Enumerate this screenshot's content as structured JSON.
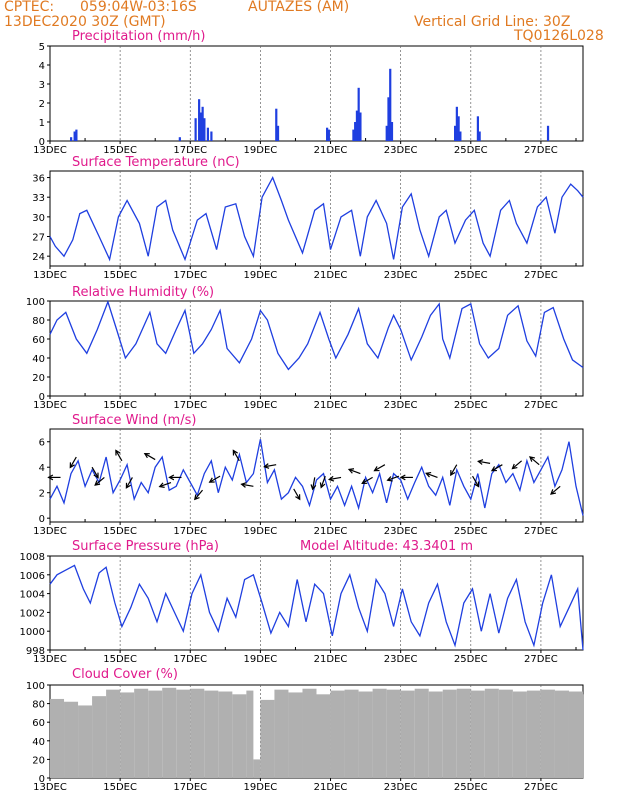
{
  "header": {
    "source": "CPTEC:",
    "coords": "059:04W-03:16S",
    "location": "AUTAZES (AM)",
    "start": "13DEC2020 30Z (GMT)",
    "grid_line": "Vertical Grid Line: 30Z",
    "code": "TQ0126L028"
  },
  "colors": {
    "series": "#1f3fe0",
    "cloud": "#b0b0b0",
    "title": "#e01a8c",
    "header": "#e07a22"
  },
  "chart_data": [
    {
      "type": "bar",
      "title": "Precipitation (mm/h)",
      "ylim": [
        0,
        5
      ],
      "yticks": [
        0,
        1,
        2,
        3,
        4,
        5
      ],
      "x_ticks": [
        "13DEC",
        "15DEC",
        "17DEC",
        "19DEC",
        "21DEC",
        "23DEC",
        "25DEC",
        "27DEC"
      ],
      "days": [
        0,
        15.2
      ],
      "bars": [
        [
          0.6,
          0.2
        ],
        [
          0.7,
          0.5
        ],
        [
          0.75,
          0.6
        ],
        [
          3.7,
          0.2
        ],
        [
          4.15,
          1.2
        ],
        [
          4.25,
          2.2
        ],
        [
          4.3,
          1.5
        ],
        [
          4.35,
          1.8
        ],
        [
          4.4,
          1.2
        ],
        [
          4.5,
          0.7
        ],
        [
          4.6,
          0.5
        ],
        [
          6.45,
          1.7
        ],
        [
          6.5,
          0.8
        ],
        [
          7.9,
          0.7
        ],
        [
          7.95,
          0.6
        ],
        [
          8.65,
          0.6
        ],
        [
          8.7,
          1.0
        ],
        [
          8.75,
          1.6
        ],
        [
          8.8,
          2.8
        ],
        [
          8.85,
          1.5
        ],
        [
          9.6,
          0.8
        ],
        [
          9.65,
          2.3
        ],
        [
          9.7,
          3.8
        ],
        [
          9.75,
          1.0
        ],
        [
          11.55,
          0.8
        ],
        [
          11.6,
          1.8
        ],
        [
          11.65,
          1.3
        ],
        [
          11.7,
          0.5
        ],
        [
          12.2,
          1.3
        ],
        [
          12.25,
          0.5
        ],
        [
          14.2,
          0.8
        ]
      ]
    },
    {
      "type": "line",
      "title": "Surface Temperature (nC)",
      "ylim": [
        22.5,
        37
      ],
      "yticks": [
        24,
        27,
        30,
        33,
        36
      ],
      "x_ticks": [
        "13DEC",
        "15DEC",
        "17DEC",
        "19DEC",
        "21DEC",
        "23DEC",
        "25DEC",
        "27DEC"
      ],
      "days": [
        0,
        15.2
      ],
      "x": [
        0,
        0.15,
        0.4,
        0.65,
        0.85,
        1.05,
        1.4,
        1.7,
        1.95,
        2.2,
        2.55,
        2.8,
        3.05,
        3.3,
        3.5,
        3.85,
        4.2,
        4.45,
        4.75,
        5,
        5.3,
        5.55,
        5.8,
        6.05,
        6.35,
        6.6,
        6.8,
        7.2,
        7.55,
        7.8,
        8,
        8.3,
        8.6,
        8.85,
        9.05,
        9.3,
        9.6,
        9.8,
        10.05,
        10.3,
        10.55,
        10.8,
        11.1,
        11.3,
        11.55,
        11.85,
        12.1,
        12.35,
        12.55,
        12.85,
        13.1,
        13.3,
        13.6,
        13.9,
        14.15,
        14.4,
        14.6,
        14.85,
        15.05,
        15.2
      ],
      "values": [
        27,
        25.5,
        24,
        26.5,
        30.5,
        31,
        27,
        23.5,
        30,
        32.5,
        29,
        24,
        31.5,
        32.5,
        28,
        23.5,
        29.5,
        30.5,
        25,
        31.5,
        32,
        27,
        24,
        33,
        36,
        32.5,
        29.5,
        24.5,
        31,
        32,
        25,
        30,
        31,
        24,
        30,
        32.5,
        29,
        23.5,
        31.5,
        33.5,
        28,
        24,
        30,
        31,
        26,
        29.5,
        31,
        26,
        24,
        31,
        32.5,
        29,
        26,
        31.5,
        33,
        27.5,
        33,
        35,
        34,
        33
      ]
    },
    {
      "type": "line",
      "title": "Relative Humidity (%)",
      "ylim": [
        0,
        100
      ],
      "yticks": [
        0,
        20,
        40,
        60,
        80,
        100
      ],
      "x_ticks": [
        "13DEC",
        "15DEC",
        "17DEC",
        "19DEC",
        "21DEC",
        "23DEC",
        "25DEC",
        "27DEC"
      ],
      "days": [
        0,
        15.2
      ],
      "x": [
        0,
        0.2,
        0.45,
        0.75,
        1.05,
        1.35,
        1.65,
        1.9,
        2.15,
        2.45,
        2.85,
        3.05,
        3.3,
        3.6,
        3.85,
        4.1,
        4.35,
        4.6,
        4.85,
        5.05,
        5.4,
        5.75,
        6.0,
        6.2,
        6.5,
        6.8,
        7.1,
        7.35,
        7.7,
        7.95,
        8.15,
        8.5,
        8.8,
        9.05,
        9.35,
        9.65,
        9.8,
        10.0,
        10.3,
        10.6,
        10.85,
        11.1,
        11.2,
        11.4,
        11.75,
        12.0,
        12.25,
        12.5,
        12.8,
        13.05,
        13.35,
        13.6,
        13.85,
        14.1,
        14.35,
        14.65,
        14.9,
        15.2
      ],
      "values": [
        65,
        80,
        88,
        60,
        45,
        70,
        99,
        70,
        40,
        55,
        88,
        55,
        45,
        70,
        90,
        45,
        55,
        70,
        90,
        50,
        35,
        60,
        90,
        80,
        45,
        28,
        40,
        55,
        88,
        60,
        40,
        65,
        92,
        55,
        40,
        72,
        85,
        70,
        38,
        62,
        85,
        97,
        60,
        40,
        92,
        97,
        55,
        40,
        50,
        85,
        95,
        58,
        42,
        88,
        93,
        60,
        38,
        30
      ]
    },
    {
      "type": "line",
      "title": "Surface Wind (m/s)",
      "ylim": [
        -0.3,
        7
      ],
      "yticks": [
        0,
        2,
        4,
        6
      ],
      "x_ticks": [
        "13DEC",
        "15DEC",
        "17DEC",
        "19DEC",
        "21DEC",
        "23DEC",
        "25DEC",
        "27DEC"
      ],
      "days": [
        0,
        15.2
      ],
      "x": [
        0,
        0.2,
        0.4,
        0.6,
        0.8,
        1.0,
        1.2,
        1.4,
        1.6,
        1.8,
        2.0,
        2.2,
        2.4,
        2.6,
        2.8,
        3.0,
        3.2,
        3.4,
        3.6,
        3.8,
        4.0,
        4.2,
        4.4,
        4.6,
        4.8,
        5.0,
        5.2,
        5.4,
        5.6,
        5.8,
        6.0,
        6.2,
        6.4,
        6.6,
        6.8,
        7.0,
        7.2,
        7.4,
        7.6,
        7.8,
        8.0,
        8.2,
        8.4,
        8.6,
        8.8,
        9.0,
        9.2,
        9.4,
        9.6,
        9.8,
        10.0,
        10.2,
        10.4,
        10.6,
        10.8,
        11.0,
        11.2,
        11.4,
        11.6,
        11.8,
        12.0,
        12.2,
        12.4,
        12.6,
        12.8,
        13.0,
        13.2,
        13.4,
        13.6,
        13.8,
        14.0,
        14.2,
        14.4,
        14.6,
        14.8,
        15.0,
        15.2
      ],
      "values": [
        1.5,
        2.5,
        1.2,
        3.5,
        4.5,
        2.5,
        3.8,
        2.8,
        4.8,
        2.0,
        3.0,
        4.2,
        1.5,
        2.8,
        2.0,
        4.0,
        4.8,
        2.2,
        2.5,
        3.8,
        2.8,
        1.8,
        3.5,
        4.5,
        2.0,
        4.0,
        3.0,
        5.0,
        2.8,
        3.5,
        6.2,
        2.8,
        3.8,
        1.5,
        2.0,
        3.2,
        2.5,
        1.0,
        3.0,
        3.5,
        1.5,
        2.5,
        1.0,
        2.5,
        0.8,
        3.2,
        2.0,
        3.5,
        1.2,
        3.5,
        3.0,
        1.5,
        2.8,
        4.0,
        2.5,
        1.8,
        3.2,
        1.0,
        3.8,
        2.5,
        1.5,
        3.5,
        0.8,
        3.5,
        4.2,
        2.8,
        3.5,
        2.2,
        4.5,
        2.8,
        3.8,
        4.8,
        2.5,
        3.8,
        6.0,
        2.5,
        0.2
      ]
    },
    {
      "type": "line",
      "title": "Surface Pressure (hPa)",
      "subtitle": "Model Altitude: 43.3401 m",
      "ylim": [
        998,
        1008
      ],
      "yticks": [
        998,
        1000,
        1002,
        1004,
        1006,
        1008
      ],
      "x_ticks": [
        "13DEC",
        "15DEC",
        "17DEC",
        "19DEC",
        "21DEC",
        "23DEC",
        "25DEC",
        "27DEC"
      ],
      "days": [
        0,
        15.2
      ],
      "x": [
        0,
        0.2,
        0.45,
        0.7,
        0.95,
        1.15,
        1.4,
        1.6,
        1.85,
        2.05,
        2.3,
        2.55,
        2.8,
        3.05,
        3.3,
        3.55,
        3.8,
        4.05,
        4.3,
        4.55,
        4.8,
        5.05,
        5.3,
        5.55,
        5.8,
        6.05,
        6.3,
        6.55,
        6.8,
        7.05,
        7.3,
        7.55,
        7.8,
        8.05,
        8.3,
        8.55,
        8.8,
        9.05,
        9.3,
        9.55,
        9.8,
        10.05,
        10.3,
        10.55,
        10.8,
        11.05,
        11.3,
        11.55,
        11.8,
        12.05,
        12.3,
        12.55,
        12.8,
        13.05,
        13.3,
        13.55,
        13.8,
        14.05,
        14.3,
        14.55,
        14.8,
        15.05,
        15.2
      ],
      "values": [
        1005,
        1006,
        1006.5,
        1007,
        1004.5,
        1003,
        1006.2,
        1006.8,
        1003,
        1000.5,
        1002.5,
        1005,
        1003.5,
        1001,
        1004,
        1002,
        1000,
        1004,
        1006,
        1002,
        1000,
        1003.5,
        1001.5,
        1005.5,
        1006,
        1003,
        999.8,
        1002,
        1000.5,
        1005.5,
        1001,
        1005,
        1004,
        999.5,
        1004,
        1006,
        1002.5,
        1000,
        1005.5,
        1004,
        1000.5,
        1004.5,
        1001,
        999.5,
        1003,
        1005,
        1001,
        998.5,
        1003,
        1004.5,
        1000,
        1004,
        999.8,
        1003.5,
        1005.5,
        1001,
        998.5,
        1003,
        1006,
        1000.5,
        1002.5,
        1004.5,
        998
      ]
    },
    {
      "type": "bar",
      "title": "Cloud Cover (%)",
      "ylim": [
        0,
        100
      ],
      "yticks": [
        0,
        20,
        40,
        60,
        80,
        100
      ],
      "x_ticks": [
        "13DEC",
        "15DEC",
        "17DEC",
        "19DEC",
        "21DEC",
        "23DEC",
        "25DEC",
        "27DEC"
      ],
      "days": [
        0,
        15.2
      ],
      "x": [
        0,
        0.4,
        0.8,
        1.2,
        1.6,
        2.0,
        2.4,
        2.8,
        3.2,
        3.6,
        4.0,
        4.4,
        4.8,
        5.2,
        5.6,
        5.8,
        6.0,
        6.4,
        6.8,
        7.2,
        7.6,
        8.0,
        8.4,
        8.8,
        9.2,
        9.6,
        10.0,
        10.4,
        10.8,
        11.2,
        11.6,
        12.0,
        12.4,
        12.8,
        13.2,
        13.6,
        14.0,
        14.4,
        14.8,
        15.2
      ],
      "values": [
        85,
        82,
        78,
        88,
        95,
        92,
        96,
        94,
        97,
        95,
        96,
        94,
        93,
        90,
        94,
        20,
        84,
        95,
        92,
        96,
        90,
        94,
        95,
        93,
        96,
        95,
        94,
        96,
        93,
        95,
        96,
        94,
        96,
        95,
        93,
        94,
        95,
        94,
        93,
        90
      ]
    }
  ],
  "wind_arrows": {
    "x": [
      0.3,
      0.75,
      1.2,
      1.55,
      2.05,
      2.35,
      3.0,
      3.45,
      3.75,
      4.35,
      4.85,
      5.4,
      5.8,
      6.45,
      6.95,
      7.55,
      7.85,
      8.3,
      8.85,
      9.2,
      9.55,
      9.95,
      10.35,
      11.05,
      11.6,
      12.05,
      12.55,
      12.9,
      13.45,
      13.95,
      14.55
    ],
    "y": [
      3.2,
      4.8,
      4.0,
      3.2,
      4.5,
      3.2,
      4.6,
      2.8,
      3.2,
      2.2,
      3.3,
      4.5,
      2.5,
      4.2,
      2.3,
      3.2,
      3.3,
      3.2,
      3.5,
      3.2,
      4.2,
      3.3,
      3.2,
      3.2,
      4.2,
      3.3,
      4.3,
      4.2,
      4.5,
      4.2,
      2.5
    ],
    "dir_deg": [
      180,
      240,
      300,
      220,
      120,
      240,
      150,
      200,
      180,
      230,
      210,
      120,
      170,
      190,
      300,
      260,
      250,
      190,
      160,
      210,
      210,
      200,
      180,
      160,
      240,
      300,
      170,
      210,
      220,
      140,
      220
    ]
  }
}
